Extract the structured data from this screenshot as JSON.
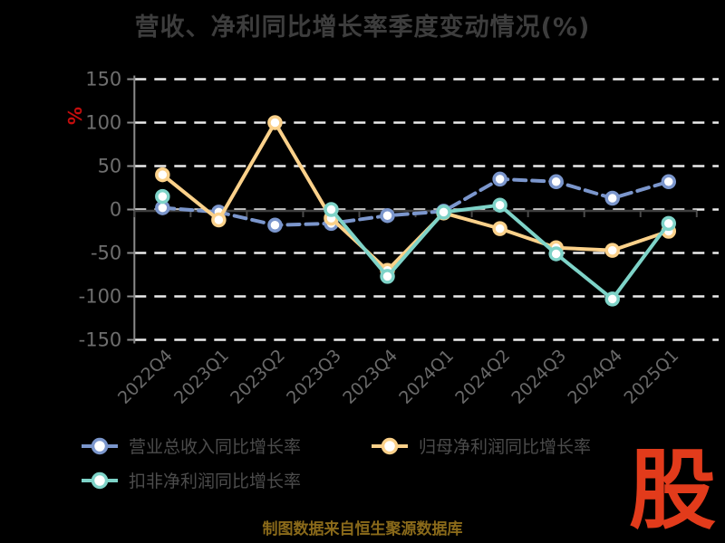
{
  "title": "营收、净利同比增长率季度变动情况(%)",
  "caption": "制图数据来自恒生聚源数据库",
  "logo_text": "股",
  "colors": {
    "background": "#000000",
    "title_text": "#3d3d3d",
    "axis_label": "#6e6e6e",
    "x_label": "#696969",
    "gridline": "#ececec",
    "axis_line": "#8a8a8a",
    "zero_line": "#3f3f3f",
    "unit_label_red": "#c40d0d",
    "caption_gold": "#8a6a1a",
    "logo_red": "#e23b1b"
  },
  "chart_data": {
    "type": "line",
    "title": "营收、净利同比增长率季度变动情况(%)",
    "ylabel": "%",
    "ylim": [
      -150,
      150
    ],
    "yticks": [
      150,
      100,
      50,
      0,
      -50,
      -100,
      -150
    ],
    "grid": "dashed-horizontal",
    "legend_position": "bottom-left",
    "categories": [
      "2022Q4",
      "2023Q1",
      "2023Q2",
      "2023Q3",
      "2023Q4",
      "2024Q1",
      "2024Q2",
      "2024Q3",
      "2024Q4",
      "2025Q1"
    ],
    "series": [
      {
        "name": "营业总收入同比增长率",
        "color": "#7b96cc",
        "line_style": "dashed",
        "values": [
          2,
          -3,
          -18,
          -16,
          -7,
          -2,
          35,
          32,
          13,
          32
        ]
      },
      {
        "name": "归母净利润同比增长率",
        "color": "#fbd18a",
        "line_style": "solid",
        "values": [
          40,
          -12,
          100,
          -10,
          -70,
          -4,
          -22,
          -44,
          -47,
          -25
        ]
      },
      {
        "name": "扣非净利润同比增长率",
        "color": "#7ed3c8",
        "line_style": "solid",
        "values": [
          15,
          null,
          null,
          0,
          -77,
          -3,
          5,
          -51,
          -103,
          -16
        ]
      }
    ]
  }
}
